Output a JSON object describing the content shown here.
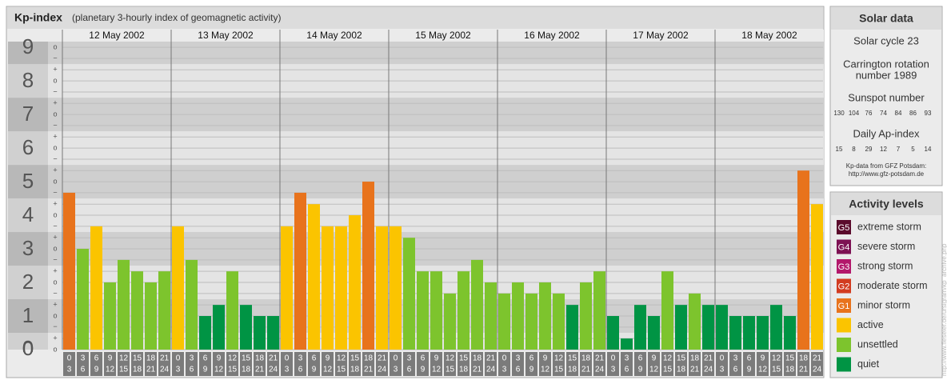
{
  "chart_data": {
    "type": "bar",
    "title": "Kp-index",
    "subtitle": "(planetary 3-hourly index of geomagnetic activity)",
    "days": [
      "12 May 2002",
      "13 May 2002",
      "14 May 2002",
      "15 May 2002",
      "16 May 2002",
      "17 May 2002",
      "18 May 2002"
    ],
    "intervals": [
      [
        "0",
        "3"
      ],
      [
        "3",
        "6"
      ],
      [
        "6",
        "9"
      ],
      [
        "9",
        "12"
      ],
      [
        "12",
        "15"
      ],
      [
        "15",
        "18"
      ],
      [
        "18",
        "21"
      ],
      [
        "21",
        "24"
      ]
    ],
    "values": [
      4.67,
      3,
      3.67,
      2,
      2.67,
      2.33,
      2,
      2.33,
      3.67,
      2.67,
      1,
      1.33,
      2.33,
      1.33,
      1,
      1,
      3.67,
      4.67,
      4.33,
      3.67,
      3.67,
      4,
      5,
      3.67,
      3.67,
      3.33,
      2.33,
      2.33,
      1.67,
      2.33,
      2.67,
      2,
      1.67,
      2,
      1.67,
      2,
      1.67,
      1.33,
      2,
      2.33,
      1,
      0.33,
      1.33,
      1,
      2.33,
      1.33,
      1.67,
      1.33,
      1.33,
      1,
      1,
      1,
      1.33,
      1,
      5.33,
      4.33
    ],
    "colors": [
      "#e8731c",
      "#7dc42d",
      "#fbc400",
      "#7dc42d",
      "#7dc42d",
      "#7dc42d",
      "#7dc42d",
      "#7dc42d",
      "#fbc400",
      "#7dc42d",
      "#009444",
      "#009444",
      "#7dc42d",
      "#009444",
      "#009444",
      "#009444",
      "#fbc400",
      "#e8731c",
      "#fbc400",
      "#fbc400",
      "#fbc400",
      "#fbc400",
      "#e8731c",
      "#fbc400",
      "#fbc400",
      "#7dc42d",
      "#7dc42d",
      "#7dc42d",
      "#7dc42d",
      "#7dc42d",
      "#7dc42d",
      "#7dc42d",
      "#7dc42d",
      "#7dc42d",
      "#7dc42d",
      "#7dc42d",
      "#7dc42d",
      "#009444",
      "#7dc42d",
      "#7dc42d",
      "#009444",
      "#009444",
      "#009444",
      "#009444",
      "#7dc42d",
      "#009444",
      "#7dc42d",
      "#009444",
      "#009444",
      "#009444",
      "#009444",
      "#009444",
      "#009444",
      "#009444",
      "#e8731c",
      "#fbc400"
    ],
    "ylim": [
      0,
      9.17
    ],
    "yticks": [
      0,
      1,
      2,
      3,
      4,
      5,
      6,
      7,
      8,
      9
    ],
    "minor_ticks": [
      {
        "value": 0,
        "label": "o"
      },
      {
        "value": 0.33,
        "label": "+"
      },
      {
        "value": 0.67,
        "label": "−"
      },
      {
        "value": 1,
        "label": "o"
      },
      {
        "value": 1.33,
        "label": "+"
      },
      {
        "value": 1.67,
        "label": "−"
      },
      {
        "value": 2,
        "label": "o"
      },
      {
        "value": 2.33,
        "label": "+"
      },
      {
        "value": 2.67,
        "label": "−"
      },
      {
        "value": 3,
        "label": "o"
      },
      {
        "value": 3.33,
        "label": "+"
      },
      {
        "value": 3.67,
        "label": "−"
      },
      {
        "value": 4,
        "label": "o"
      },
      {
        "value": 4.33,
        "label": "+"
      },
      {
        "value": 4.67,
        "label": "−"
      },
      {
        "value": 5,
        "label": "o"
      },
      {
        "value": 5.33,
        "label": "+"
      },
      {
        "value": 5.67,
        "label": "−"
      },
      {
        "value": 6,
        "label": "o"
      },
      {
        "value": 6.33,
        "label": "+"
      },
      {
        "value": 6.67,
        "label": "−"
      },
      {
        "value": 7,
        "label": "o"
      },
      {
        "value": 7.33,
        "label": "+"
      },
      {
        "value": 7.67,
        "label": "−"
      },
      {
        "value": 8,
        "label": "o"
      },
      {
        "value": 8.33,
        "label": "+"
      },
      {
        "value": 8.67,
        "label": "−"
      },
      {
        "value": 9,
        "label": "o"
      }
    ],
    "solar_data": {
      "title": "Solar data",
      "cycle": "Solar cycle 23",
      "carrington": [
        "Carrington rotation",
        "number 1989"
      ],
      "sunspot_title": "Sunspot number",
      "sunspot": [
        "130",
        "104",
        "76",
        "74",
        "84",
        "86",
        "93"
      ],
      "ap_title": "Daily Ap-index",
      "ap": [
        "15",
        "8",
        "29",
        "12",
        "7",
        "5",
        "14"
      ],
      "source": [
        "Kp-data from GFZ Potsdam:",
        "http://www.gfz-potsdam.de"
      ]
    },
    "legend": {
      "title": "Activity levels",
      "items": [
        {
          "badge": "G5",
          "name": "extreme storm",
          "color": "#5b0b2c"
        },
        {
          "badge": "G4",
          "name": "severe storm",
          "color": "#7d1153"
        },
        {
          "badge": "G3",
          "name": "strong storm",
          "color": "#b3186b"
        },
        {
          "badge": "G2",
          "name": "moderate storm",
          "color": "#d23b20"
        },
        {
          "badge": "G1",
          "name": "minor storm",
          "color": "#e8731c"
        },
        {
          "badge": "",
          "name": "active",
          "color": "#fbc400"
        },
        {
          "badge": "",
          "name": "unsettled",
          "color": "#7dc42d"
        },
        {
          "badge": "",
          "name": "quiet",
          "color": "#009444"
        }
      ]
    },
    "credit": "http://www.fieseler.de/ursigram/kp_archive.php"
  }
}
